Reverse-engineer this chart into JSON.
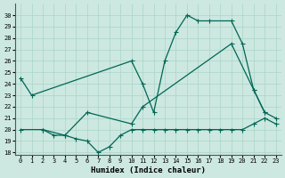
{
  "xlabel": "Humidex (Indice chaleur)",
  "xlim": [
    -0.5,
    23.5
  ],
  "ylim": [
    17.8,
    31.0
  ],
  "yticks": [
    18,
    19,
    20,
    21,
    22,
    23,
    24,
    25,
    26,
    27,
    28,
    29,
    30
  ],
  "xticks": [
    0,
    1,
    2,
    3,
    4,
    5,
    6,
    7,
    8,
    9,
    10,
    11,
    12,
    13,
    14,
    15,
    16,
    17,
    18,
    19,
    20,
    21,
    22,
    23
  ],
  "bg_color": "#cce8e0",
  "grid_color": "#aad4c8",
  "line_color": "#006655",
  "line1_x": [
    0,
    1,
    10,
    11,
    12,
    13,
    14,
    15,
    16,
    17,
    19,
    20,
    21,
    22,
    23
  ],
  "line1_y": [
    24.5,
    23.0,
    26.0,
    24.0,
    21.5,
    26.0,
    28.5,
    30.0,
    29.5,
    29.5,
    29.5,
    27.5,
    23.5,
    21.5,
    21.0
  ],
  "line2_x": [
    2,
    3,
    4,
    5,
    6,
    7,
    8,
    9,
    10,
    11,
    12,
    13,
    14,
    15,
    16,
    17,
    18,
    19,
    20,
    21,
    22,
    23
  ],
  "line2_y": [
    20.0,
    19.5,
    19.5,
    19.2,
    19.0,
    18.0,
    18.5,
    19.5,
    20.0,
    20.0,
    20.0,
    20.0,
    20.0,
    20.0,
    20.0,
    20.0,
    20.0,
    20.0,
    20.0,
    20.5,
    21.0,
    20.5
  ],
  "line3_x": [
    0,
    2,
    4,
    6,
    10,
    11,
    19,
    21,
    22
  ],
  "line3_y": [
    20.0,
    20.0,
    19.5,
    21.5,
    20.5,
    22.0,
    27.5,
    23.5,
    21.5
  ]
}
